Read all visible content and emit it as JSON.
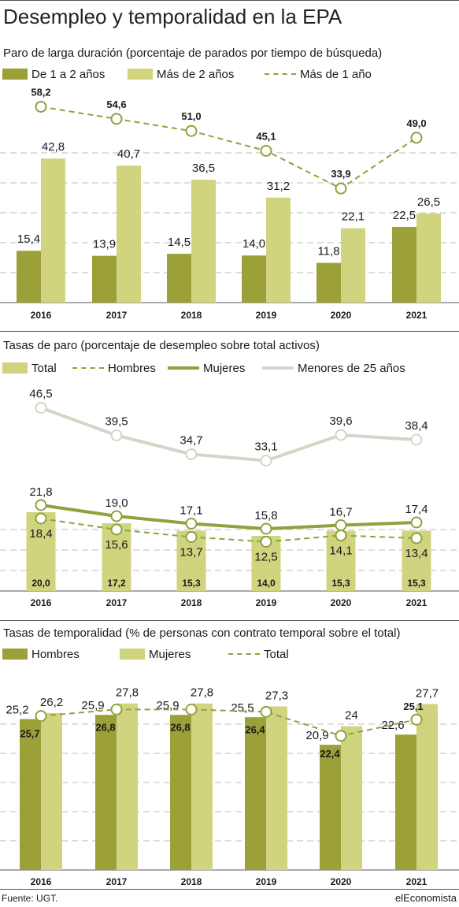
{
  "title": "Desempleo y temporalidad en la EPA",
  "source": "Fuente: UGT.",
  "brand": "elEconomista",
  "colors": {
    "dark_olive": "#9ba039",
    "light_olive": "#d0d47e",
    "line_olive": "#8fa23d",
    "light_gray": "#d4d4c8",
    "grid": "#bcbcbc"
  },
  "chart_data": [
    {
      "type": "bar",
      "title": "Paro de larga duración (porcentaje de parados por tiempo de búsqueda)",
      "categories": [
        "2016",
        "2017",
        "2018",
        "2019",
        "2020",
        "2021"
      ],
      "ylim": [
        0,
        66
      ],
      "grid": true,
      "legend_position": "top",
      "series": [
        {
          "name": "De 1 a 2 años",
          "kind": "bar",
          "color": "#9ba039",
          "values": [
            15.4,
            13.9,
            14.5,
            14.0,
            11.8,
            22.5
          ],
          "labels": [
            "15,4",
            "13,9",
            "14,5",
            "14,0",
            "11,8",
            "22,5"
          ]
        },
        {
          "name": "Más de 2 años",
          "kind": "bar",
          "color": "#d0d47e",
          "values": [
            42.8,
            40.7,
            36.5,
            31.2,
            22.1,
            26.5
          ],
          "labels": [
            "42,8",
            "40,7",
            "36,5",
            "31,2",
            "22,1",
            "26,5"
          ]
        },
        {
          "name": "Más de 1 año",
          "kind": "line-dashed",
          "color": "#8fa23d",
          "values": [
            58.2,
            54.6,
            51.0,
            45.1,
            33.9,
            49.0
          ],
          "labels": [
            "58,2",
            "54,6",
            "51,0",
            "45,1",
            "33,9",
            "49,0"
          ]
        }
      ]
    },
    {
      "type": "bar",
      "title": "Tasas de paro (porcentaje de desempleo sobre total activos)",
      "categories": [
        "2016",
        "2017",
        "2018",
        "2019",
        "2020",
        "2021"
      ],
      "ylim": [
        0,
        49
      ],
      "grid": true,
      "legend_position": "top",
      "series": [
        {
          "name": "Total",
          "kind": "bar",
          "color": "#d0d47e",
          "values": [
            20.0,
            17.2,
            15.3,
            14.0,
            15.3,
            15.3
          ],
          "labels": [
            "20,0",
            "17,2",
            "15,3",
            "14,0",
            "15,3",
            "15,3"
          ]
        },
        {
          "name": "Hombres",
          "kind": "line-dashed",
          "color": "#8fa23d",
          "values": [
            18.4,
            15.6,
            13.7,
            12.5,
            14.1,
            13.4
          ],
          "labels": [
            "18,4",
            "15,6",
            "13,7",
            "12,5",
            "14,1",
            "13,4"
          ]
        },
        {
          "name": "Mujeres",
          "kind": "line-solid",
          "color": "#8fa23d",
          "values": [
            21.8,
            19.0,
            17.1,
            15.8,
            16.7,
            17.4
          ],
          "labels": [
            "21,8",
            "19,0",
            "17,1",
            "15,8",
            "16,7",
            "17,4"
          ]
        },
        {
          "name": "Menores de 25 años",
          "kind": "line-gray",
          "color": "#d4d4c8",
          "values": [
            46.5,
            39.5,
            34.7,
            33.1,
            39.6,
            38.4
          ],
          "labels": [
            "46,5",
            "39,5",
            "34,7",
            "33,1",
            "39,6",
            "38,4"
          ]
        }
      ]
    },
    {
      "type": "bar",
      "title": "Tasas de temporalidad (% de personas con contrato temporal sobre el total)",
      "categories": [
        "2016",
        "2017",
        "2018",
        "2019",
        "2020",
        "2021"
      ],
      "ylim": [
        0,
        31.5
      ],
      "grid": true,
      "legend_position": "top",
      "series": [
        {
          "name": "Hombres",
          "kind": "bar",
          "color": "#9ba039",
          "values": [
            25.2,
            25.9,
            25.9,
            25.5,
            20.9,
            22.6
          ],
          "labels": [
            "25,2",
            "25,9",
            "25,9",
            "25,5",
            "20,9",
            "22,6"
          ]
        },
        {
          "name": "Mujeres",
          "kind": "bar",
          "color": "#d0d47e",
          "values": [
            26.2,
            27.8,
            27.8,
            27.3,
            24,
            27.7
          ],
          "labels": [
            "26,2",
            "27,8",
            "27,8",
            "27,3",
            "24",
            "27,7"
          ]
        },
        {
          "name": "Total",
          "kind": "line-dashed",
          "color": "#8fa23d",
          "values": [
            25.7,
            26.8,
            26.8,
            26.4,
            22.4,
            25.1
          ],
          "labels": [
            "25,7",
            "26,8",
            "26,8",
            "26,4",
            "22,4",
            "25,1"
          ]
        }
      ]
    }
  ]
}
